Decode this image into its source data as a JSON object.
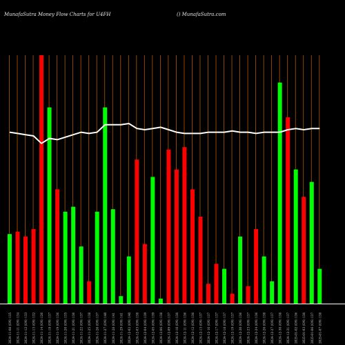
{
  "header": {
    "title": "MunafaSutra  Money Flow  Charts for U4FH",
    "site": "() MunafaSutra.com"
  },
  "colors": {
    "background": "#000000",
    "up_bar": "#00ff00",
    "down_bar": "#ff0000",
    "gridline": "#b35a00",
    "line": "#ffffff",
    "label": "#c8c8c8"
  },
  "chart_data": {
    "type": "bar",
    "bar_value_unit": "relative money flow (0-1)",
    "line_value_unit": "relative (0-1)",
    "categories": [
      "2024-11-08 (ON) 135",
      "2024-11-11 (ON) 134",
      "2024-11-12 (ON) 133",
      "2024-11-13 (ON) 132",
      "2024-11-14 (ON) 126",
      "2024-11-18 (ON) 137",
      "2024-11-19 (ON) 136",
      "2024-11-20 (ON) 135",
      "2024-11-21 (ON) 136",
      "2024-11-22 (ON) 137",
      "2024-11-25 (ON) 138",
      "2024-11-26 (ON) 137",
      "2024-11-27 (ON) 140",
      "2024-11-28 (ON) 141",
      "2024-11-29 (ON) 141",
      "2024-12-02 (ON) 140",
      "2024-12-03 (ON) 138",
      "2024-12-04 (ON) 139",
      "2024-12-05 (ON) 139",
      "2024-12-06 (ON) 138",
      "2024-12-09 (ON) 137",
      "2024-12-10 (ON) 136",
      "2024-12-11 (ON) 136",
      "2024-12-12 (ON) 136",
      "2024-12-13 (ON) 137",
      "2024-12-16 (ON) 137",
      "2024-12-17 (ON) 137",
      "2024-12-18 (ON) 137",
      "2024-12-19 (ON) 137",
      "2024-12-20 (ON) 136",
      "2024-12-23 (ON) 137",
      "2024-12-24 (ON) 136",
      "2024-12-26 (ON) 138",
      "2024-12-27 (ON) 137",
      "2024-12-30 (ON) 138",
      "2024-12-31 (ON) 137",
      "2025-01-02 (ON) 136",
      "2025-01-03 (ON) 136",
      "2025-01-06 (ON) 137",
      "2025-01-07 (ON) 138"
    ],
    "bars": [
      {
        "value": 0.28,
        "color": "green"
      },
      {
        "value": 0.29,
        "color": "red"
      },
      {
        "value": 0.27,
        "color": "red"
      },
      {
        "value": 0.3,
        "color": "red"
      },
      {
        "value": 1.0,
        "color": "red"
      },
      {
        "value": 0.79,
        "color": "green"
      },
      {
        "value": 0.46,
        "color": "red"
      },
      {
        "value": 0.37,
        "color": "green"
      },
      {
        "value": 0.39,
        "color": "green"
      },
      {
        "value": 0.23,
        "color": "green"
      },
      {
        "value": 0.09,
        "color": "red"
      },
      {
        "value": 0.37,
        "color": "green"
      },
      {
        "value": 0.79,
        "color": "green"
      },
      {
        "value": 0.38,
        "color": "green"
      },
      {
        "value": 0.03,
        "color": "green"
      },
      {
        "value": 0.19,
        "color": "green"
      },
      {
        "value": 0.58,
        "color": "red"
      },
      {
        "value": 0.24,
        "color": "red"
      },
      {
        "value": 0.51,
        "color": "green"
      },
      {
        "value": 0.02,
        "color": "green"
      },
      {
        "value": 0.62,
        "color": "red"
      },
      {
        "value": 0.54,
        "color": "red"
      },
      {
        "value": 0.63,
        "color": "red"
      },
      {
        "value": 0.46,
        "color": "red"
      },
      {
        "value": 0.35,
        "color": "red"
      },
      {
        "value": 0.08,
        "color": "red"
      },
      {
        "value": 0.16,
        "color": "red"
      },
      {
        "value": 0.14,
        "color": "green"
      },
      {
        "value": 0.04,
        "color": "red"
      },
      {
        "value": 0.27,
        "color": "green"
      },
      {
        "value": 0.07,
        "color": "red"
      },
      {
        "value": 0.3,
        "color": "red"
      },
      {
        "value": 0.19,
        "color": "green"
      },
      {
        "value": 0.09,
        "color": "green"
      },
      {
        "value": 0.89,
        "color": "green"
      },
      {
        "value": 0.75,
        "color": "red"
      },
      {
        "value": 0.54,
        "color": "green"
      },
      {
        "value": 0.43,
        "color": "red"
      },
      {
        "value": 0.49,
        "color": "green"
      },
      {
        "value": 0.14,
        "color": "green"
      }
    ],
    "line": [
      0.69,
      0.685,
      0.68,
      0.675,
      0.645,
      0.665,
      0.66,
      0.67,
      0.68,
      0.69,
      0.685,
      0.69,
      0.72,
      0.72,
      0.72,
      0.725,
      0.705,
      0.7,
      0.705,
      0.71,
      0.7,
      0.69,
      0.685,
      0.685,
      0.685,
      0.69,
      0.69,
      0.69,
      0.695,
      0.69,
      0.69,
      0.685,
      0.69,
      0.69,
      0.69,
      0.7,
      0.705,
      0.7,
      0.705,
      0.705
    ],
    "ylim": [
      0,
      1
    ],
    "grid": true,
    "legend": "none"
  }
}
